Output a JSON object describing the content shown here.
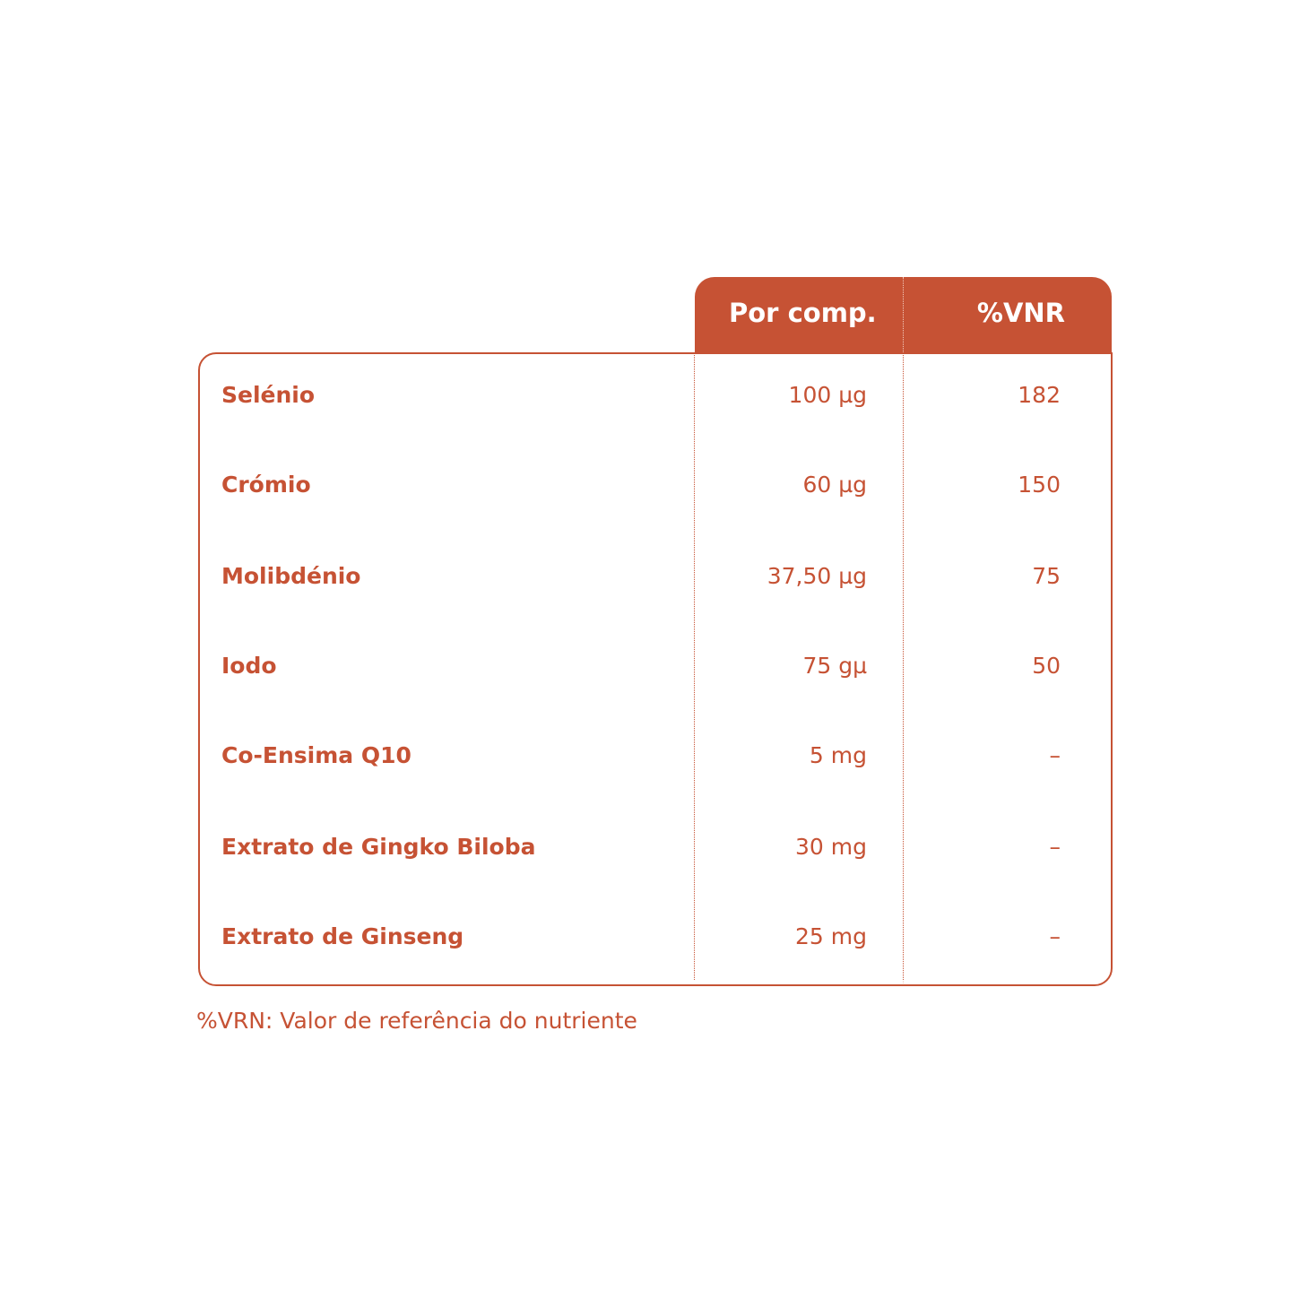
{
  "colors": {
    "accent": "#c65234",
    "background": "#ffffff"
  },
  "table": {
    "headers": {
      "amount": "Por comp.",
      "vnr": "%VNR"
    },
    "rows": [
      {
        "name": "Selénio",
        "amount": "100 µg",
        "vnr": "182"
      },
      {
        "name": "Crómio",
        "amount": "60 µg",
        "vnr": "150"
      },
      {
        "name": "Molibdénio",
        "amount": "37,50 µg",
        "vnr": "75"
      },
      {
        "name": "Iodo",
        "amount": "75 gµ",
        "vnr": "50"
      },
      {
        "name": "Co-Ensima Q10",
        "amount": "5 mg",
        "vnr": "–"
      },
      {
        "name": "Extrato de Gingko Biloba",
        "amount": "30 mg",
        "vnr": "–"
      },
      {
        "name": "Extrato de Ginseng",
        "amount": "25 mg",
        "vnr": "–"
      }
    ]
  },
  "footnote": "%VRN: Valor de referência do nutriente"
}
